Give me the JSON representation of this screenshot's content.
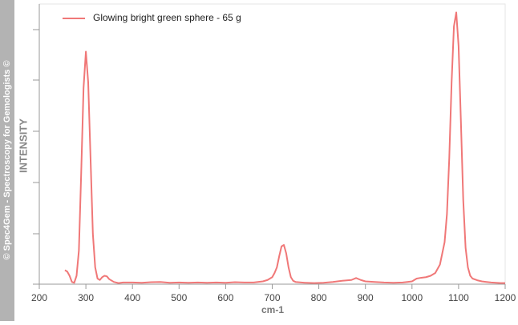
{
  "chart_data": {
    "type": "line",
    "watermark": "© Spec4Gem - Spectroscopy for Gemologists ©",
    "y_label": "INTENSITY",
    "x_label": "cm-1",
    "xlim": [
      200,
      1200
    ],
    "xticks": [
      200,
      300,
      400,
      500,
      600,
      700,
      800,
      900,
      1000,
      1100,
      1200
    ],
    "ylim": [
      0,
      100
    ],
    "x": [
      255,
      260,
      265,
      270,
      275,
      280,
      285,
      290,
      295,
      300,
      305,
      310,
      315,
      320,
      325,
      330,
      335,
      340,
      345,
      350,
      360,
      370,
      380,
      400,
      420,
      440,
      460,
      480,
      500,
      520,
      540,
      560,
      580,
      600,
      620,
      640,
      660,
      680,
      690,
      700,
      705,
      710,
      715,
      720,
      725,
      730,
      735,
      740,
      745,
      750,
      770,
      790,
      810,
      830,
      850,
      870,
      880,
      890,
      900,
      920,
      940,
      960,
      980,
      1000,
      1010,
      1020,
      1030,
      1040,
      1050,
      1060,
      1070,
      1075,
      1080,
      1085,
      1090,
      1095,
      1100,
      1105,
      1110,
      1115,
      1120,
      1125,
      1130,
      1140,
      1150,
      1160,
      1170,
      1180,
      1190,
      1200
    ],
    "series": [
      {
        "name": "Glowing bright green sphere - 65 g",
        "color": "#f07878",
        "values": [
          5,
          4.5,
          3,
          0.8,
          0.5,
          3,
          12,
          40,
          70,
          83,
          72,
          45,
          18,
          6,
          2,
          1.5,
          2.5,
          3,
          2.8,
          1.8,
          0.8,
          0.4,
          0.6,
          0.6,
          0.5,
          0.7,
          0.8,
          0.5,
          0.6,
          0.5,
          0.6,
          0.5,
          0.6,
          0.5,
          0.7,
          0.6,
          0.6,
          1,
          1.5,
          2.5,
          4,
          6,
          10,
          13.5,
          14,
          11,
          6,
          2.5,
          1.2,
          0.8,
          0.5,
          0.4,
          0.5,
          0.8,
          1.2,
          1.5,
          2.2,
          1.5,
          1,
          0.8,
          0.6,
          0.5,
          0.6,
          1,
          2,
          2.3,
          2.5,
          3,
          4,
          7,
          15,
          25,
          45,
          72,
          92,
          97,
          85,
          58,
          30,
          13,
          6,
          3,
          2,
          1.4,
          1,
          0.8,
          0.6,
          0.5,
          0.4,
          0.4
        ]
      }
    ]
  }
}
